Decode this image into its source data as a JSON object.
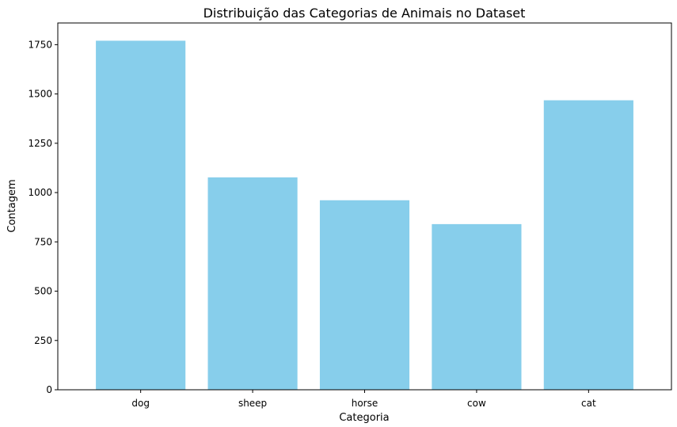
{
  "chart_data": {
    "type": "bar",
    "title": "Distribuição das Categorias de Animais no Dataset",
    "xlabel": "Categoria",
    "ylabel": "Contagem",
    "categories": [
      "dog",
      "sheep",
      "horse",
      "cow",
      "cat"
    ],
    "values": [
      1770,
      1077,
      961,
      840,
      1468
    ],
    "ylim": [
      0,
      1860
    ],
    "yticks": [
      0,
      250,
      500,
      750,
      1000,
      1250,
      1500,
      1750
    ],
    "grid": false,
    "bar_color": "#87ceeb"
  }
}
